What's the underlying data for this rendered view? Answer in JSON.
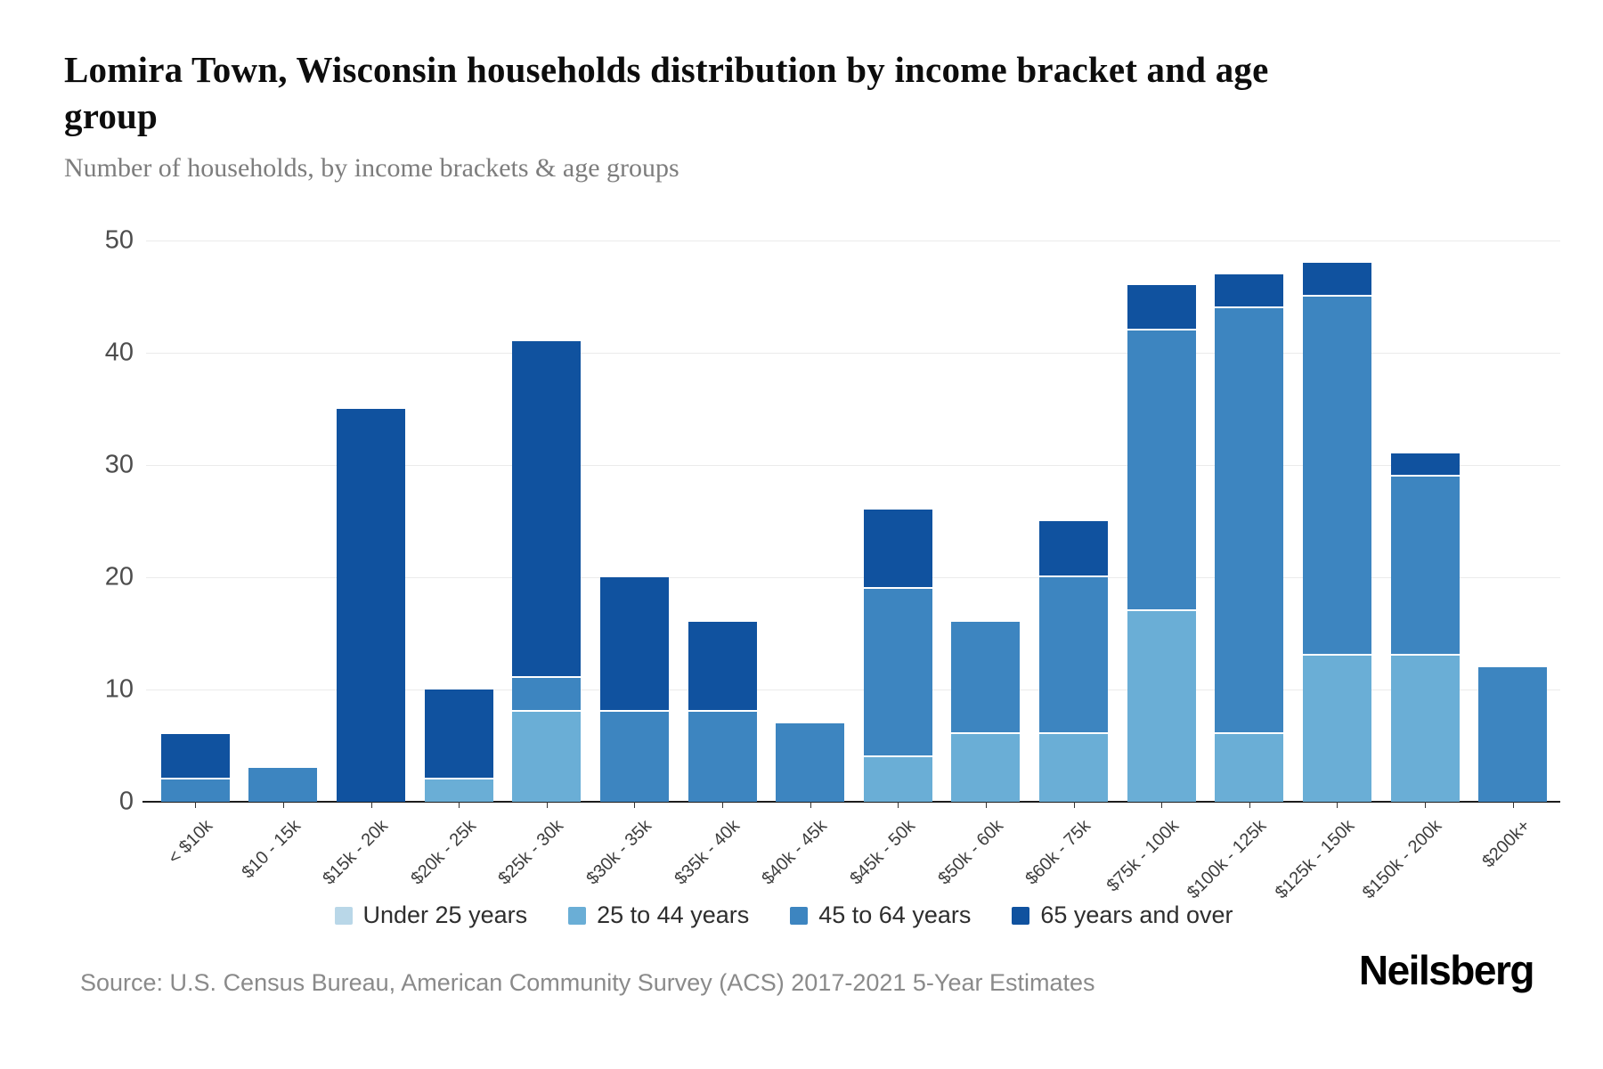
{
  "header": {
    "title": "Lomira Town, Wisconsin households distribution by income bracket and age group",
    "subtitle": "Number of households, by income brackets & age groups"
  },
  "chart_data": {
    "type": "bar",
    "stacked": true,
    "title": "Lomira Town, Wisconsin households distribution by income bracket and age group",
    "subtitle": "Number of households, by income brackets & age groups",
    "xlabel": "",
    "ylabel": "Number of households",
    "ylim": [
      0,
      50
    ],
    "yticks": [
      0,
      10,
      20,
      30,
      40,
      50
    ],
    "grid": true,
    "legend_position": "bottom",
    "categories": [
      "< $10k",
      "$10 - 15k",
      "$15k - 20k",
      "$20k - 25k",
      "$25k - 30k",
      "$30k - 35k",
      "$35k - 40k",
      "$40k - 45k",
      "$45k - 50k",
      "$50k - 60k",
      "$60k - 75k",
      "$75k - 100k",
      "$100k - 125k",
      "$125k - 150k",
      "$150k - 200k",
      "$200k+"
    ],
    "series": [
      {
        "name": "Under 25 years",
        "color": "#b9d7e8",
        "values": [
          0,
          0,
          0,
          0,
          0,
          0,
          0,
          0,
          0,
          0,
          0,
          0,
          0,
          0,
          0,
          0
        ]
      },
      {
        "name": "25 to 44 years",
        "color": "#6aaed6",
        "values": [
          0,
          0,
          0,
          2,
          8,
          0,
          0,
          0,
          4,
          6,
          6,
          17,
          6,
          13,
          13,
          0
        ]
      },
      {
        "name": "45 to 64 years",
        "color": "#3d85c0",
        "values": [
          2,
          3,
          0,
          0,
          3,
          8,
          8,
          7,
          15,
          10,
          14,
          25,
          38,
          32,
          16,
          12
        ]
      },
      {
        "name": "65 years and over",
        "color": "#10529f",
        "values": [
          4,
          0,
          35,
          8,
          30,
          12,
          8,
          0,
          7,
          0,
          5,
          4,
          3,
          3,
          2,
          0
        ]
      }
    ],
    "totals": [
      6,
      3,
      35,
      10,
      41,
      20,
      16,
      7,
      26,
      16,
      25,
      46,
      47,
      48,
      31,
      12
    ]
  },
  "footer": {
    "source": "Source: U.S. Census Bureau, American Community Survey (ACS) 2017-2021 5-Year Estimates",
    "brand": "Neilsberg"
  }
}
